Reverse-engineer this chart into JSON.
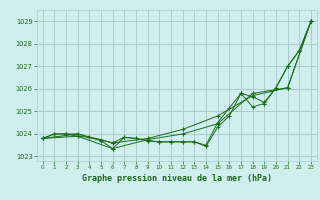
{
  "background_color": "#d0eeee",
  "grid_color": "#aacccc",
  "line_color": "#1a6b1a",
  "title": "Graphe pression niveau de la mer (hPa)",
  "xlim": [
    -0.5,
    23.5
  ],
  "ylim": [
    1022.8,
    1029.5
  ],
  "yticks": [
    1023,
    1024,
    1025,
    1026,
    1027,
    1028,
    1029
  ],
  "xticks": [
    0,
    1,
    2,
    3,
    4,
    5,
    6,
    7,
    8,
    9,
    10,
    11,
    12,
    13,
    14,
    15,
    16,
    17,
    18,
    19,
    20,
    21,
    22,
    23
  ],
  "series": [
    {
      "x": [
        0,
        1,
        2,
        3,
        4,
        5,
        6,
        7,
        8,
        9,
        10,
        11,
        12,
        13,
        14,
        15,
        16,
        17,
        18,
        19,
        20,
        21,
        22,
        23
      ],
      "y": [
        1023.8,
        1024.0,
        1024.0,
        1023.9,
        1023.85,
        1023.7,
        1023.35,
        1023.85,
        1023.8,
        1023.7,
        1023.65,
        1023.65,
        1023.65,
        1023.65,
        1023.45,
        1024.3,
        1024.8,
        1025.8,
        1025.2,
        1025.35,
        1026.05,
        1027.0,
        1027.7,
        1029.0
      ]
    },
    {
      "x": [
        0,
        1,
        2,
        3,
        4,
        5,
        6,
        7,
        8,
        9,
        10,
        11,
        12,
        13,
        14,
        15,
        16,
        17,
        18,
        19,
        20,
        21,
        22,
        23
      ],
      "y": [
        1023.8,
        1024.0,
        1024.0,
        1024.0,
        1023.85,
        1023.75,
        1023.6,
        1023.85,
        1023.8,
        1023.7,
        1023.65,
        1023.65,
        1023.65,
        1023.65,
        1023.5,
        1024.5,
        1025.15,
        1025.8,
        1025.65,
        1025.4,
        1026.05,
        1027.0,
        1027.7,
        1029.0
      ]
    },
    {
      "x": [
        0,
        3,
        6,
        9,
        12,
        15,
        18,
        21,
        23
      ],
      "y": [
        1023.8,
        1024.0,
        1023.6,
        1023.8,
        1024.2,
        1024.8,
        1025.7,
        1026.05,
        1029.0
      ]
    },
    {
      "x": [
        0,
        3,
        6,
        9,
        12,
        15,
        18,
        21,
        23
      ],
      "y": [
        1023.8,
        1023.9,
        1023.35,
        1023.75,
        1024.0,
        1024.45,
        1025.8,
        1026.05,
        1029.0
      ]
    }
  ]
}
